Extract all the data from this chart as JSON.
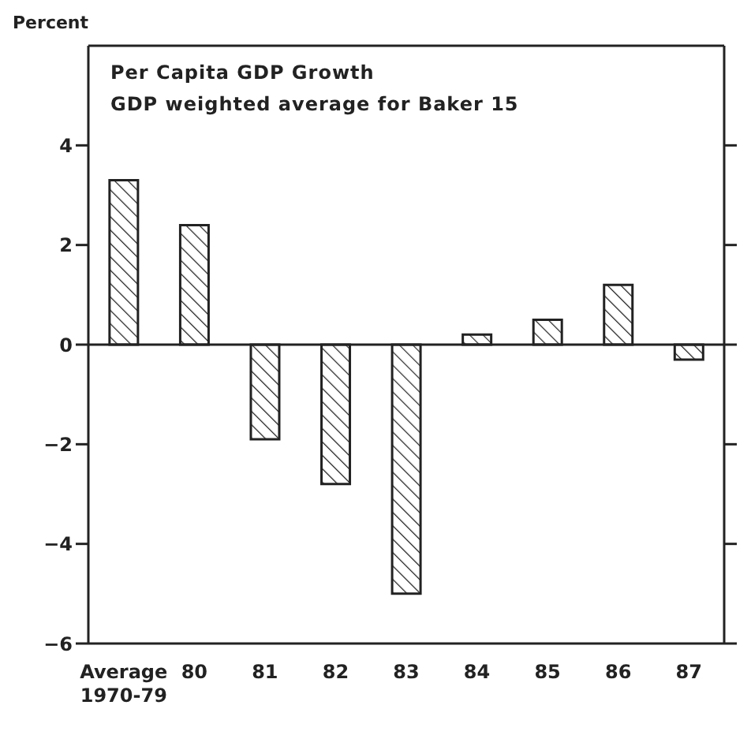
{
  "chart_data": {
    "type": "bar",
    "title": "Per Capita GDP Growth",
    "subtitle": "GDP weighted average for Baker 15",
    "ylabel": "Percent",
    "categories": [
      "Average 1970-79",
      "80",
      "81",
      "82",
      "83",
      "84",
      "85",
      "86",
      "87"
    ],
    "values": [
      3.3,
      2.4,
      -1.9,
      -2.8,
      -5.0,
      0.2,
      0.5,
      1.2,
      -0.3
    ],
    "color": "#222222",
    "ylim": [
      -6,
      6
    ],
    "yticks": [
      -6,
      -4,
      -2,
      0,
      2,
      4
    ]
  }
}
